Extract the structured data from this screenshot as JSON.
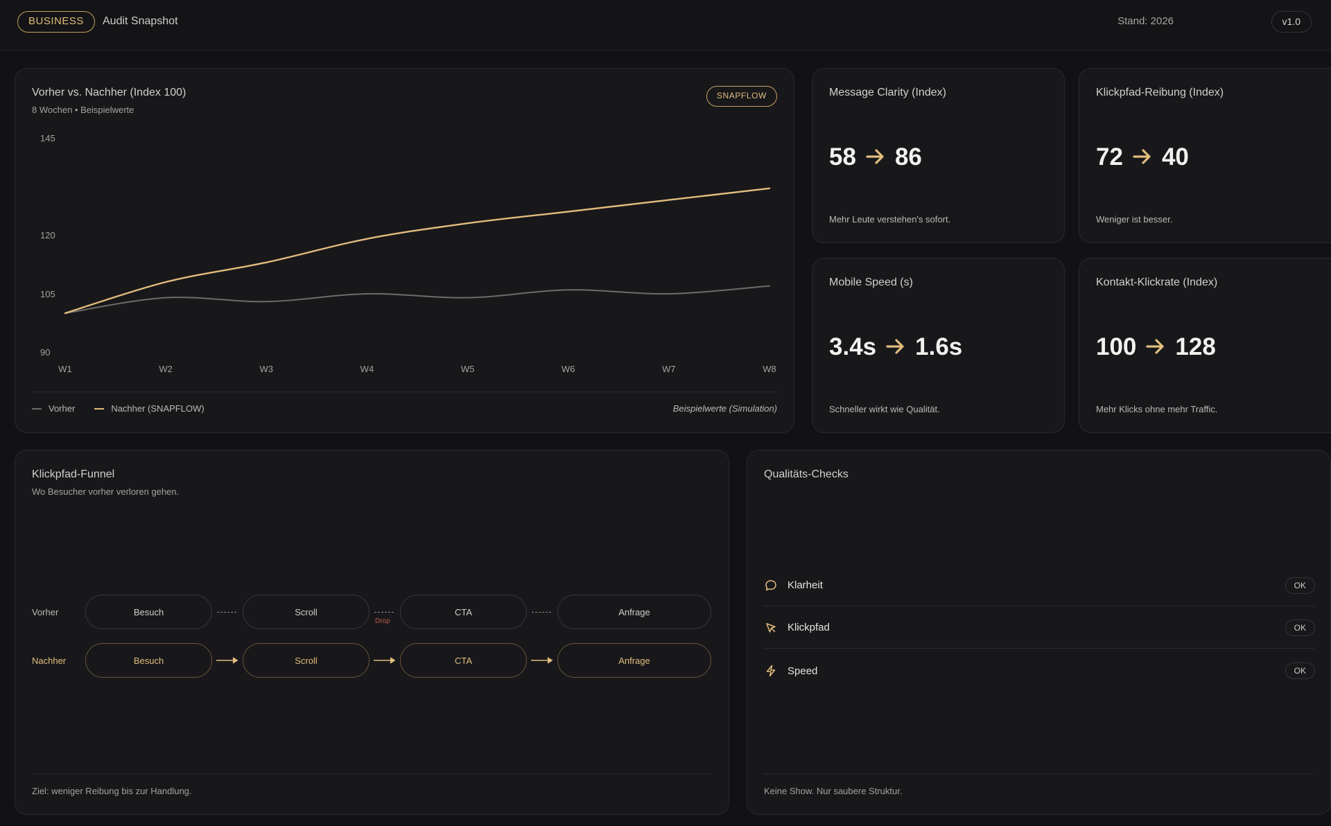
{
  "header": {
    "badge": "BUSINESS",
    "title": "Audit Snapshot",
    "stand": "Stand: 2026",
    "version": "v1.0"
  },
  "chart": {
    "title": "Vorher vs. Nachher (Index 100)",
    "subtitle": "8 Wochen • Beispielwerte",
    "badge": "SNAPFLOW",
    "note": "Beispielwerte (Simulation)",
    "legend": [
      {
        "label": "Vorher",
        "color": "#6e6c69"
      },
      {
        "label": "Nachher (SNAPFLOW)",
        "color": "#e2bd7e"
      }
    ]
  },
  "chart_data": {
    "type": "line",
    "x": [
      "W1",
      "W2",
      "W3",
      "W4",
      "W5",
      "W6",
      "W7",
      "W8"
    ],
    "yticks": [
      90,
      105,
      120,
      145
    ],
    "ylim": [
      90,
      145
    ],
    "series": [
      {
        "name": "Vorher",
        "color": "#6e6c69",
        "values": [
          100,
          104,
          103,
          105,
          104,
          106,
          105,
          107
        ]
      },
      {
        "name": "Nachher (SNAPFLOW)",
        "color": "#e2bd7e",
        "values": [
          100,
          108,
          113,
          119,
          123,
          126,
          129,
          132
        ]
      }
    ],
    "grid": false,
    "legend_position": "bottom-left"
  },
  "kpis": [
    {
      "title": "Message Clarity (Index)",
      "from": "58",
      "to": "86",
      "note": "Mehr Leute verstehen's sofort."
    },
    {
      "title": "Klickpfad-Reibung (Index)",
      "from": "72",
      "to": "40",
      "note": "Weniger ist besser."
    },
    {
      "title": "Mobile Speed (s)",
      "from": "3.4s",
      "to": "1.6s",
      "note": "Schneller wirkt wie Qualität."
    },
    {
      "title": "Kontakt-Klickrate (Index)",
      "from": "100",
      "to": "128",
      "note": "Mehr Klicks ohne mehr Traffic."
    }
  ],
  "funnel": {
    "title": "Klickpfad-Funnel",
    "subtitle": "Wo Besucher vorher verloren gehen.",
    "before_label": "Vorher",
    "after_label": "Nachher",
    "steps": [
      "Besuch",
      "Scroll",
      "CTA",
      "Anfrage"
    ],
    "drop_label": "Drop",
    "footer": "Ziel: weniger Reibung bis zur Handlung."
  },
  "checks": {
    "title": "Qualitäts-Checks",
    "items": [
      {
        "label": "Klarheit",
        "status": "OK",
        "icon": "chat-bubble-icon"
      },
      {
        "label": "Klickpfad",
        "status": "OK",
        "icon": "cursor-icon"
      },
      {
        "label": "Speed",
        "status": "OK",
        "icon": "lightning-icon"
      }
    ],
    "footer": "Keine Show. Nur saubere Struktur."
  },
  "colors": {
    "accent": "#e2bd7e",
    "muted_line": "#6e6c69",
    "drop": "#c0574e"
  }
}
